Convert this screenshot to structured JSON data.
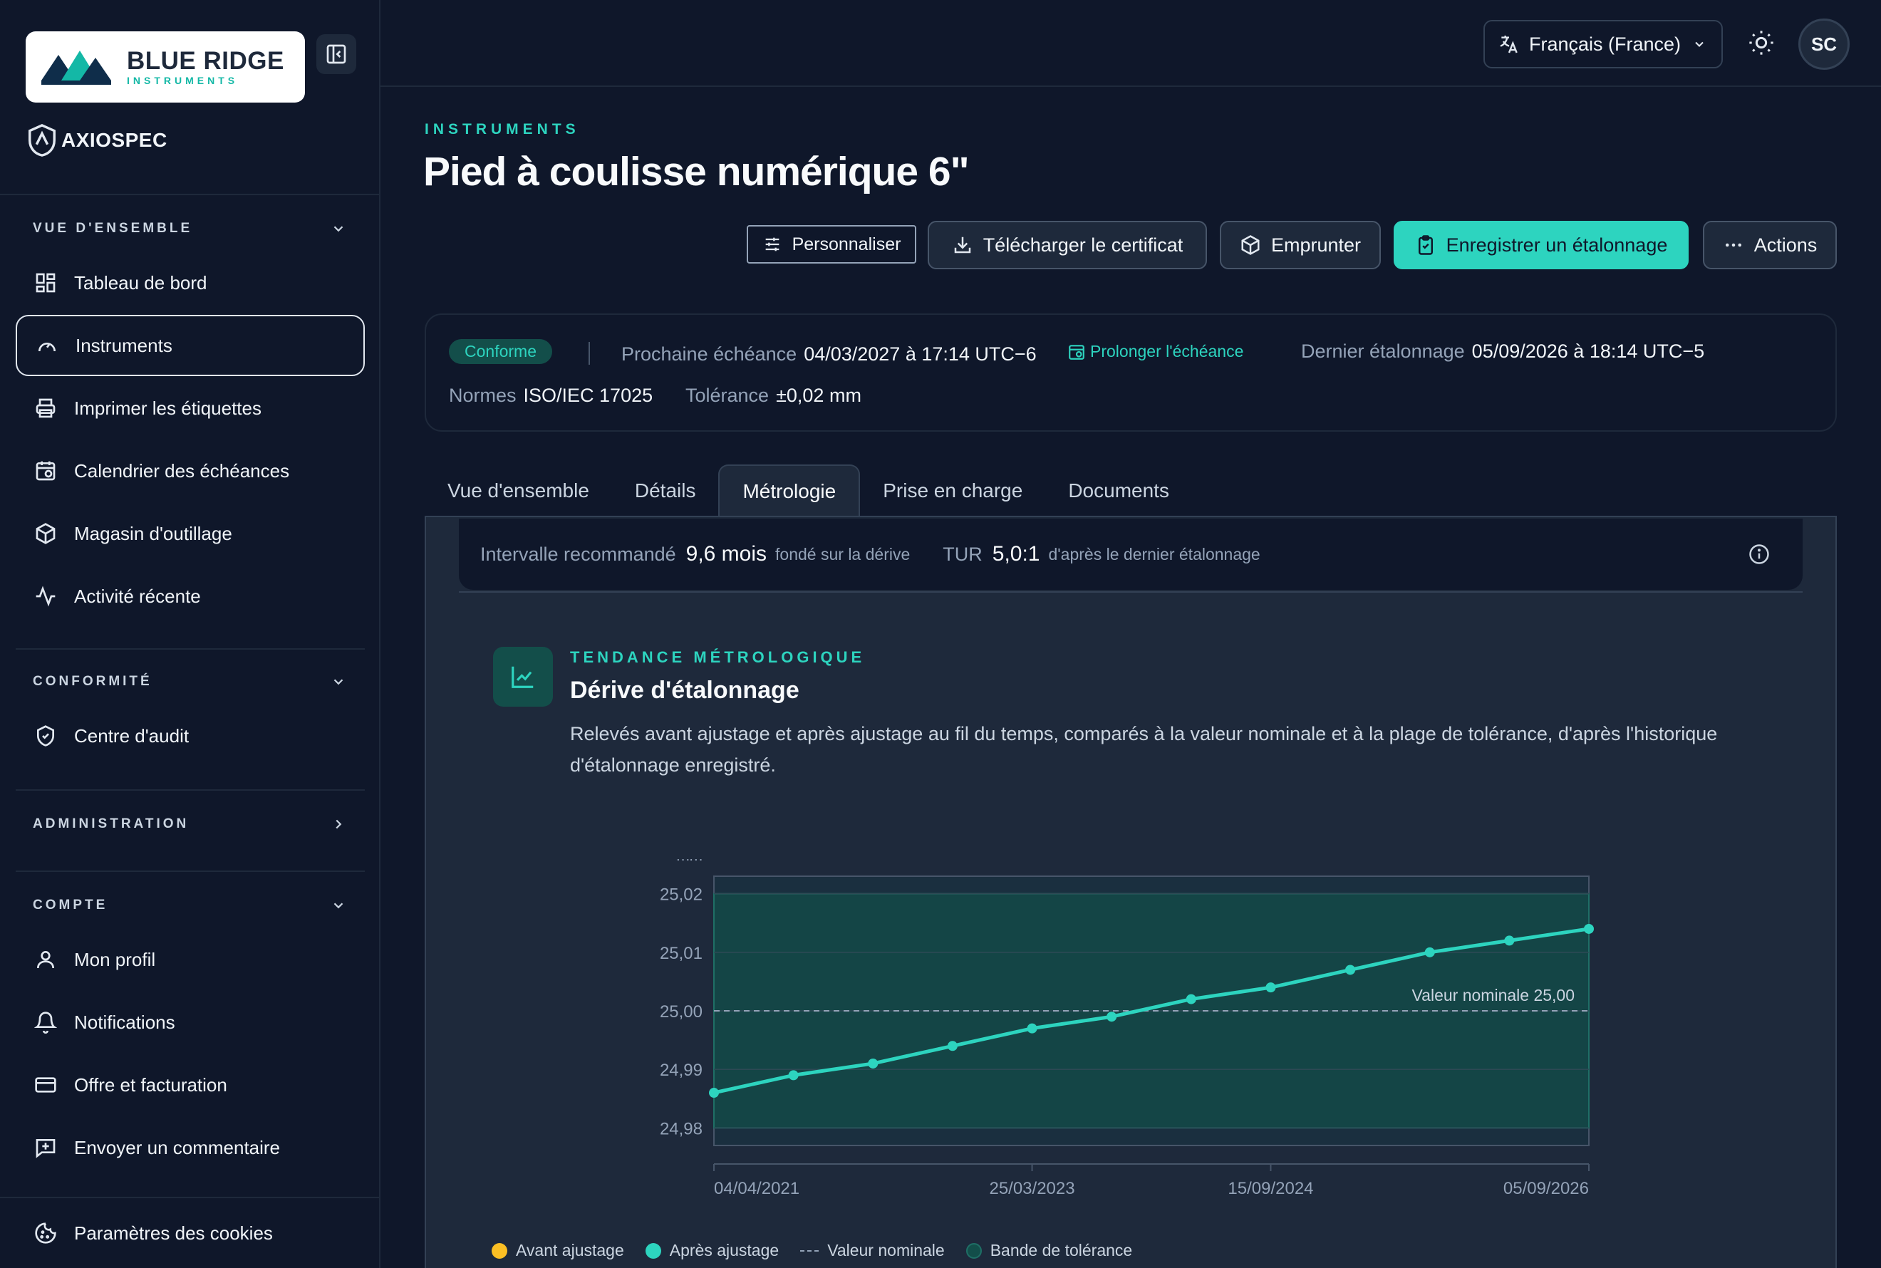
{
  "brand": {
    "name": "BLUE RIDGE",
    "sub": "INSTRUMENTS"
  },
  "product": {
    "name": "AXIOSPEC"
  },
  "sidebar": {
    "sections": [
      {
        "title": "VUE D'ENSEMBLE",
        "items": [
          "Tableau de bord",
          "Instruments",
          "Imprimer les étiquettes",
          "Calendrier des échéances",
          "Magasin d'outillage",
          "Activité récente"
        ]
      },
      {
        "title": "CONFORMITÉ",
        "items": [
          "Centre d'audit"
        ]
      },
      {
        "title": "ADMINISTRATION",
        "items": []
      },
      {
        "title": "COMPTE",
        "items": [
          "Mon profil",
          "Notifications",
          "Offre et facturation",
          "Envoyer un commentaire"
        ]
      }
    ],
    "footer_item": "Paramètres des cookies"
  },
  "topbar": {
    "language": "Français (France)",
    "avatar": "SC"
  },
  "page": {
    "eyebrow": "INSTRUMENTS",
    "title": "Pied à coulisse numérique 6\"",
    "buttons": {
      "customize": "Personnaliser",
      "download": "Télécharger le certificat",
      "borrow": "Emprunter",
      "record": "Enregistrer un étalonnage",
      "actions": "Actions"
    }
  },
  "status": {
    "badge": "Conforme",
    "next_due_label": "Prochaine échéance",
    "next_due_value": "04/03/2027 à 17:14 UTC−6",
    "extend_label": "Prolonger l'échéance",
    "last_cal_label": "Dernier étalonnage",
    "last_cal_value": "05/09/2026 à 18:14 UTC−5",
    "norms_label": "Normes",
    "norms_value": "ISO/IEC 17025",
    "tolerance_label": "Tolérance",
    "tolerance_value": "±0,02 mm"
  },
  "tabs": [
    "Vue d'ensemble",
    "Détails",
    "Métrologie",
    "Prise en charge",
    "Documents"
  ],
  "metrology": {
    "interval_label": "Intervalle recommandé",
    "interval_value": "9,6 mois",
    "interval_note": "fondé sur la dérive",
    "tur_label": "TUR",
    "tur_value": "5,0:1",
    "tur_note": "d'après le dernier étalonnage",
    "eyebrow": "TENDANCE MÉTROLOGIQUE",
    "title": "Dérive d'étalonnage",
    "description": "Relevés avant ajustage et après ajustage au fil du temps, comparés à la valeur nominale et à la plage de tolérance, d'après l'historique d'étalonnage enregistré."
  },
  "chart_data": {
    "type": "line",
    "unit_label": "mm",
    "ylim": [
      24.977,
      25.023
    ],
    "y_ticks": [
      "25,02",
      "25,01",
      "25,00",
      "24,99",
      "24,98"
    ],
    "x_tick_labels": [
      "04/04/2021",
      "25/03/2023",
      "15/09/2024",
      "05/09/2026"
    ],
    "series": [
      {
        "name": "Après ajustage",
        "values": [
          24.986,
          24.989,
          24.991,
          24.994,
          24.997,
          24.999,
          25.002,
          25.004,
          25.007,
          25.01,
          25.012,
          25.014
        ]
      }
    ],
    "nominal": 25.0,
    "nominal_label": "Valeur nominale 25,00",
    "tolerance_band": [
      24.98,
      25.02
    ],
    "legend": [
      "Avant ajustage",
      "Après ajustage",
      "Valeur nominale",
      "Bande de tolérance"
    ],
    "colors": {
      "before": "#fbbf24",
      "after": "#2dd4bf",
      "band": "#134e4a"
    },
    "grid": true
  }
}
